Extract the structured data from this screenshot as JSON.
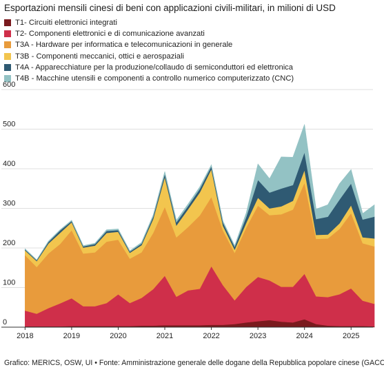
{
  "chart_data": {
    "type": "area",
    "stacked": true,
    "title": "Esportazioni mensili cinesi di beni con applicazioni civili-militari, in milioni di USD",
    "xlabel": "",
    "ylabel": "",
    "ylim": [
      0,
      600
    ],
    "yticks": [
      0,
      100,
      200,
      300,
      400,
      500,
      600
    ],
    "xticks": [
      {
        "label": "2018",
        "x": 2018.0
      },
      {
        "label": "2019",
        "x": 2019.0
      },
      {
        "label": "2020",
        "x": 2020.0
      },
      {
        "label": "2021",
        "x": 2021.0
      },
      {
        "label": "2022",
        "x": 2022.0
      },
      {
        "label": "2023",
        "x": 2023.0
      },
      {
        "label": "2024",
        "x": 2024.0
      },
      {
        "label": "2025",
        "x": 2025.0
      }
    ],
    "grid": true,
    "legend_position": "top-left",
    "x": [
      2018.0,
      2018.25,
      2018.5,
      2018.75,
      2019.0,
      2019.25,
      2019.5,
      2019.75,
      2020.0,
      2020.25,
      2020.5,
      2020.75,
      2021.0,
      2021.25,
      2021.5,
      2021.75,
      2022.0,
      2022.25,
      2022.5,
      2022.75,
      2023.0,
      2023.25,
      2023.5,
      2023.75,
      2024.0,
      2024.25,
      2024.5,
      2024.75,
      2025.0,
      2025.25,
      2025.5
    ],
    "series": [
      {
        "name": "T1- Circuiti elettronici integrati",
        "color": "#7a1a1e",
        "values": [
          2,
          2,
          2,
          2,
          3,
          3,
          3,
          3,
          3,
          3,
          4,
          4,
          5,
          5,
          5,
          5,
          6,
          6,
          8,
          12,
          15,
          18,
          14,
          12,
          20,
          8,
          4,
          3,
          3,
          3,
          2
        ]
      },
      {
        "name": "T2- Componenti elettronici e di comunicazione avanzati",
        "color": "#cf2f4a",
        "values": [
          40,
          32,
          46,
          58,
          70,
          50,
          50,
          58,
          80,
          58,
          70,
          92,
          125,
          72,
          88,
          92,
          148,
          100,
          60,
          90,
          112,
          100,
          88,
          90,
          115,
          70,
          72,
          80,
          95,
          64,
          57
        ]
      },
      {
        "name": "T3A - Hardware per informatica e telecomunicazioni in generale",
        "color": "#e89b3c",
        "values": [
          140,
          118,
          138,
          150,
          172,
          133,
          136,
          155,
          138,
          112,
          115,
          142,
          174,
          150,
          160,
          185,
          175,
          138,
          120,
          150,
          180,
          165,
          183,
          195,
          230,
          145,
          148,
          165,
          190,
          145,
          145
        ]
      },
      {
        "name": "T3B - Componenti meccanici, ottici e aerospaziali",
        "color": "#f2c54e",
        "values": [
          12,
          15,
          25,
          28,
          20,
          15,
          17,
          22,
          20,
          15,
          18,
          35,
          75,
          30,
          45,
          58,
          70,
          12,
          8,
          12,
          20,
          17,
          20,
          22,
          32,
          10,
          10,
          14,
          20,
          15,
          20
        ]
      },
      {
        "name": "T4A - Apparecchiature per la produzione/collaudo di semiconduttori ed elettronica",
        "color": "#2f5a73",
        "values": [
          2,
          2,
          4,
          6,
          3,
          3,
          4,
          5,
          4,
          3,
          4,
          6,
          8,
          8,
          8,
          9,
          7,
          8,
          7,
          15,
          45,
          40,
          45,
          40,
          45,
          40,
          45,
          60,
          55,
          45,
          55
        ]
      },
      {
        "name": "T4B - Macchine utensili e componenti a controllo numerico computerizzato (CNC)",
        "color": "#93c2c4",
        "values": [
          2,
          1,
          2,
          2,
          2,
          2,
          2,
          3,
          3,
          2,
          3,
          4,
          6,
          5,
          5,
          5,
          4,
          4,
          3,
          10,
          40,
          35,
          80,
          70,
          70,
          25,
          30,
          40,
          35,
          15,
          30
        ]
      }
    ]
  },
  "footer": {
    "text": "Grafico: MERICS, OSW, UI • Fonte: Amministrazione generale delle dogane della Repubblica popolare cinese (GACC)"
  }
}
